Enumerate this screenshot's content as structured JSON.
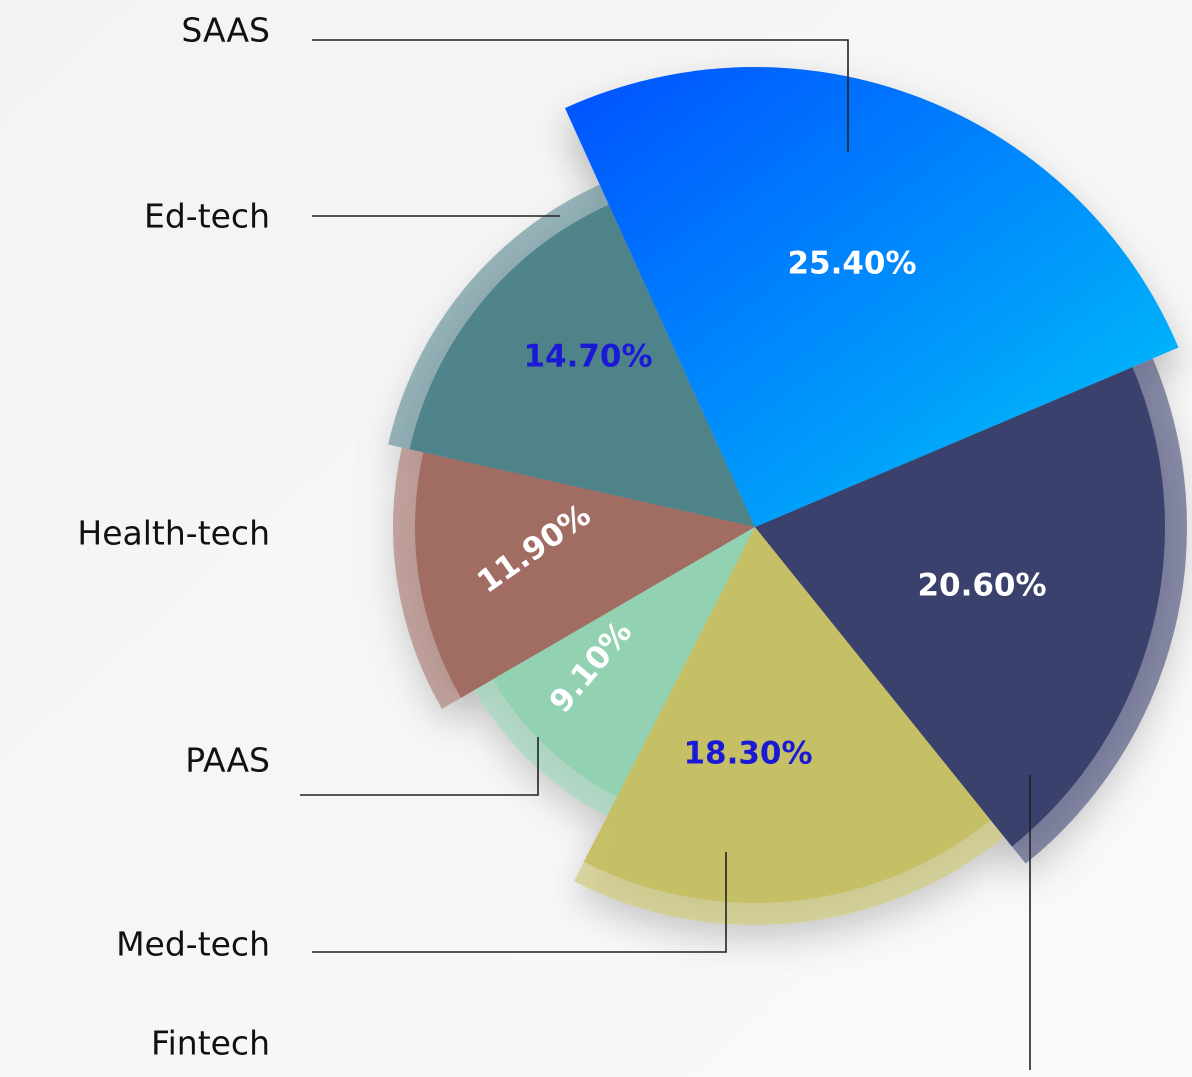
{
  "chart_data": {
    "type": "pie",
    "categories": [
      "SAAS",
      "Fintech",
      "Med-tech",
      "PAAS",
      "Health-tech",
      "Ed-tech"
    ],
    "values": [
      25.4,
      20.6,
      18.3,
      9.1,
      11.9,
      14.7
    ],
    "value_labels": [
      "25.40%",
      "20.60%",
      "18.30%",
      "9.10%",
      "11.90%",
      "14.70%"
    ],
    "colors": [
      "#0a8cff",
      "#353d6a",
      "#c4bf62",
      "#8fd0b0",
      "#9e6a5f",
      "#4a8088"
    ]
  }
}
